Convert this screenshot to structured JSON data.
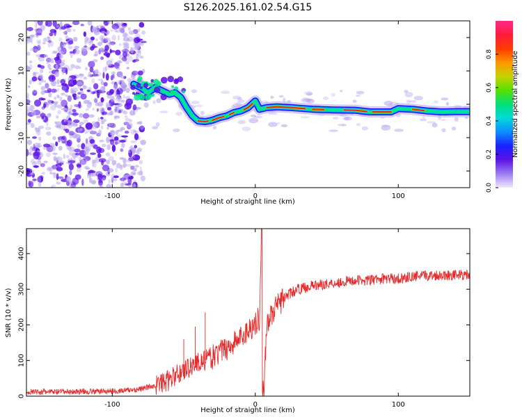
{
  "figure": {
    "title": "S126.2025.161.02.54.G15"
  },
  "colors": {
    "spectrum_low": "#b8a7ee",
    "spectrum_mid": "#5b11e6",
    "spectrum_track_edge": "#1a0cff",
    "spectrum_track_mid": "#00e58a",
    "spectrum_track_core": "#e21d1d",
    "snr_line": "#e82a2a",
    "colorbar_stops": [
      "#f0e8ff",
      "#9b7cf3",
      "#5d14e6",
      "#1822ff",
      "#0e8cff",
      "#00d9d9",
      "#00e07a",
      "#57e000",
      "#c7d300",
      "#ff9500",
      "#ff3a00",
      "#ff1c3c",
      "#ff2a8a"
    ]
  },
  "chart_data": [
    {
      "type": "heatmap",
      "title": "S126.2025.161.02.54.G15",
      "xlabel": "Height of straight line (km)",
      "ylabel": "Frequency (Hz)",
      "xlim": [
        -160,
        150
      ],
      "ylim": [
        -25,
        25
      ],
      "x_ticks": [
        -100,
        0,
        100
      ],
      "y_ticks": [
        -20,
        -10,
        0,
        10,
        20
      ],
      "grid": false,
      "colorbar": {
        "label": "Normalized spectral amplitude",
        "range": [
          0,
          1
        ],
        "ticks": [
          "0.0",
          "0.2",
          "0.4",
          "0.6",
          "0.8"
        ]
      },
      "ridge": {
        "x": [
          -85,
          -80,
          -75,
          -70,
          -65,
          -60,
          -56,
          -52,
          -48,
          -44,
          -40,
          -35,
          -30,
          -25,
          -20,
          -15,
          -10,
          -5,
          0,
          3,
          8,
          15,
          25,
          40,
          55,
          70,
          80,
          95,
          100,
          110,
          120,
          130,
          140,
          150
        ],
        "y": [
          6,
          5,
          3.5,
          5,
          4,
          3,
          3.5,
          2,
          -1,
          -3.5,
          -5,
          -5.2,
          -4.8,
          -4,
          -3.5,
          -2.5,
          -2,
          -1,
          1,
          -1.5,
          -1,
          -0.8,
          -1,
          -1.5,
          -1.7,
          -1.8,
          -2.3,
          -2.3,
          -1.3,
          -1.5,
          -2,
          -2.3,
          -2.2,
          -2.2
        ]
      },
      "noisy_region_x": [
        -160,
        -78
      ]
    },
    {
      "type": "line",
      "xlabel": "Height of straight line (km)",
      "ylabel": "SNR (10 * v/v)",
      "xlim": [
        -160,
        150
      ],
      "ylim": [
        0,
        470
      ],
      "x_ticks": [
        -100,
        0,
        100
      ],
      "y_ticks": [
        0,
        100,
        200,
        300,
        400
      ],
      "grid": false,
      "series": [
        {
          "x": [
            -160,
            -140,
            -120,
            -100,
            -90,
            -80,
            -70,
            -60,
            -55,
            -50,
            -45,
            -40,
            -35,
            -30,
            -25,
            -20,
            -15,
            -10,
            -5,
            0,
            3,
            4.5,
            6,
            8,
            10,
            15,
            20,
            25,
            30,
            40,
            50,
            60,
            70,
            80,
            90,
            100,
            110,
            120,
            130,
            140,
            150
          ],
          "y": [
            12,
            12,
            13,
            14,
            16,
            20,
            30,
            45,
            60,
            72,
            85,
            95,
            100,
            110,
            122,
            135,
            150,
            165,
            185,
            205,
            220,
            470,
            15,
            205,
            220,
            250,
            275,
            290,
            300,
            310,
            315,
            320,
            325,
            325,
            330,
            330,
            335,
            338,
            340,
            340,
            340
          ]
        }
      ],
      "annotations": {
        "dropout_x": 5,
        "spike_x": 4.5
      }
    }
  ]
}
